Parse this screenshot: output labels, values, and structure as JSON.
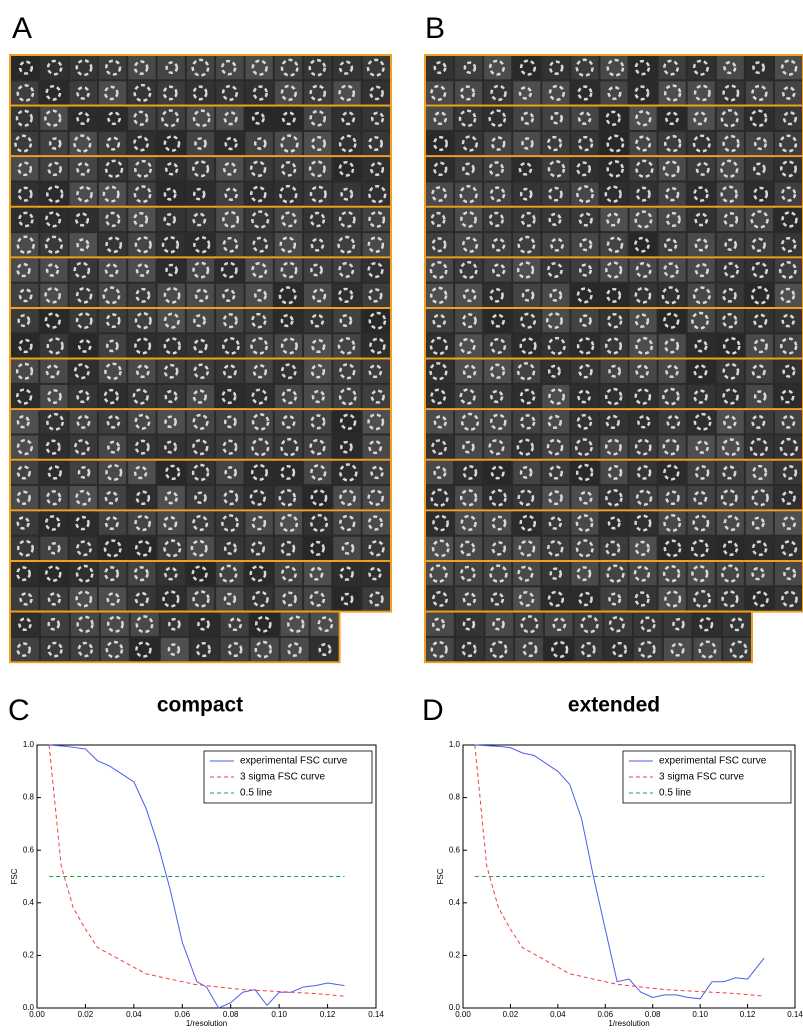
{
  "panel_labels": [
    "A",
    "B",
    "C",
    "D"
  ],
  "chart_data": [
    {
      "type": "line",
      "title": "compact",
      "x_label": "1/resolution",
      "y_label": "FSC",
      "xlim": [
        0,
        0.14
      ],
      "ylim": [
        0,
        1
      ],
      "xticks": [
        {
          "value": 0,
          "label": "0.00"
        },
        {
          "value": 0.02,
          "label": "0.02"
        },
        {
          "value": 0.04,
          "label": "0.04"
        },
        {
          "value": 0.06,
          "label": "0.06"
        },
        {
          "value": 0.08,
          "label": "0.08"
        },
        {
          "value": 0.1,
          "label": "0.10"
        },
        {
          "value": 0.12,
          "label": "0.12"
        },
        {
          "value": 0.14,
          "label": "0.14"
        }
      ],
      "yticks": [
        {
          "value": 0,
          "label": "0.0"
        },
        {
          "value": 0.2,
          "label": "0.2"
        },
        {
          "value": 0.4,
          "label": "0.4"
        },
        {
          "value": 0.6,
          "label": "0.6"
        },
        {
          "value": 0.8,
          "label": "0.8"
        },
        {
          "value": 1,
          "label": "1.0"
        }
      ],
      "legend": "upper right",
      "series": [
        {
          "name": "experimental FSC curve",
          "color": "#4a5ef0",
          "style": "solid",
          "x": [
            0.005,
            0.012,
            0.02,
            0.025,
            0.03,
            0.035,
            0.04,
            0.045,
            0.05,
            0.055,
            0.06,
            0.066,
            0.07,
            0.075,
            0.08,
            0.085,
            0.09,
            0.095,
            0.1,
            0.105,
            0.11,
            0.115,
            0.12,
            0.127
          ],
          "values": [
            1.0,
            0.995,
            0.985,
            0.94,
            0.92,
            0.89,
            0.86,
            0.76,
            0.62,
            0.45,
            0.25,
            0.1,
            0.08,
            0.0,
            0.02,
            0.06,
            0.07,
            0.01,
            0.06,
            0.06,
            0.08,
            0.085,
            0.095,
            0.085
          ]
        },
        {
          "name": "3 sigma FSC curve",
          "color": "#f04040",
          "style": "dashed",
          "x": [
            0.005,
            0.01,
            0.015,
            0.02,
            0.025,
            0.035,
            0.045,
            0.055,
            0.065,
            0.075,
            0.085,
            0.095,
            0.105,
            0.115,
            0.127
          ],
          "values": [
            1.0,
            0.54,
            0.38,
            0.3,
            0.23,
            0.18,
            0.13,
            0.11,
            0.09,
            0.08,
            0.07,
            0.065,
            0.06,
            0.055,
            0.045
          ]
        },
        {
          "name": "0.5 line",
          "color": "#20a050",
          "style": "dashed",
          "x": [
            0.005,
            0.127
          ],
          "values": [
            0.5,
            0.5
          ]
        }
      ]
    },
    {
      "type": "line",
      "title": "extended",
      "x_label": "1/resolution",
      "y_label": "FSC",
      "xlim": [
        0,
        0.14
      ],
      "ylim": [
        0,
        1
      ],
      "xticks": [
        {
          "value": 0,
          "label": "0.00"
        },
        {
          "value": 0.02,
          "label": "0.02"
        },
        {
          "value": 0.04,
          "label": "0.04"
        },
        {
          "value": 0.06,
          "label": "0.06"
        },
        {
          "value": 0.08,
          "label": "0.08"
        },
        {
          "value": 0.1,
          "label": "0.10"
        },
        {
          "value": 0.12,
          "label": "0.12"
        },
        {
          "value": 0.14,
          "label": "0.14"
        }
      ],
      "yticks": [
        {
          "value": 0,
          "label": "0.0"
        },
        {
          "value": 0.2,
          "label": "0.2"
        },
        {
          "value": 0.4,
          "label": "0.4"
        },
        {
          "value": 0.6,
          "label": "0.6"
        },
        {
          "value": 0.8,
          "label": "0.8"
        },
        {
          "value": 1,
          "label": "1.0"
        }
      ],
      "legend": "upper right",
      "series": [
        {
          "name": "experimental FSC curve",
          "color": "#4a5ef0",
          "style": "solid",
          "x": [
            0.005,
            0.015,
            0.02,
            0.025,
            0.03,
            0.035,
            0.04,
            0.045,
            0.05,
            0.055,
            0.06,
            0.065,
            0.07,
            0.075,
            0.08,
            0.085,
            0.09,
            0.095,
            0.1,
            0.105,
            0.11,
            0.115,
            0.12,
            0.127
          ],
          "values": [
            1.0,
            0.995,
            0.99,
            0.97,
            0.96,
            0.93,
            0.9,
            0.85,
            0.72,
            0.5,
            0.3,
            0.1,
            0.11,
            0.06,
            0.04,
            0.05,
            0.05,
            0.04,
            0.035,
            0.1,
            0.1,
            0.115,
            0.11,
            0.19
          ]
        },
        {
          "name": "3 sigma FSC curve",
          "color": "#f04040",
          "style": "dashed",
          "x": [
            0.005,
            0.01,
            0.015,
            0.02,
            0.025,
            0.035,
            0.045,
            0.055,
            0.065,
            0.075,
            0.085,
            0.095,
            0.105,
            0.115,
            0.127
          ],
          "values": [
            1.0,
            0.54,
            0.38,
            0.3,
            0.23,
            0.18,
            0.13,
            0.11,
            0.09,
            0.08,
            0.07,
            0.065,
            0.06,
            0.055,
            0.045
          ]
        },
        {
          "name": "0.5 line",
          "color": "#20a050",
          "style": "dashed",
          "x": [
            0.005,
            0.127
          ],
          "values": [
            0.5,
            0.5
          ]
        }
      ]
    }
  ]
}
